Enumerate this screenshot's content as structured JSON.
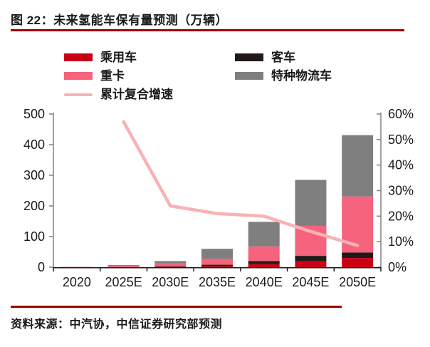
{
  "figure": {
    "title": "图 22：未来氢能车保有量预测（万辆）",
    "source": "资料来源：中汽协，中信证券研究部预测"
  },
  "colors": {
    "accent_rule": "#9c0008",
    "passenger_car": "#cb0017",
    "bus": "#211a18",
    "heavy_truck": "#f5637c",
    "special_logistics": "#7f7f7f",
    "cagr_line": "#f8b2b4",
    "axis_gray": "#808080",
    "axis_dark": "#1a1a1a",
    "text": "#1a1a1a"
  },
  "legend": {
    "columns": [
      {
        "items": [
          {
            "id": "passenger-cars",
            "label": "乘用车",
            "swatch": "bar",
            "color": "#cb0017"
          },
          {
            "id": "heavy-trucks",
            "label": "重卡",
            "swatch": "bar",
            "color": "#f5637c"
          },
          {
            "id": "cagr-line",
            "label": "累计复合增速",
            "swatch": "line",
            "color": "#f8b2b4"
          }
        ]
      },
      {
        "items": [
          {
            "id": "buses",
            "label": "客车",
            "swatch": "bar",
            "color": "#211a18"
          },
          {
            "id": "special-logistics",
            "label": "特种物流车",
            "swatch": "bar",
            "color": "#7f7f7f"
          }
        ]
      }
    ]
  },
  "chart_data": {
    "type": "bar",
    "subtype": "stacked-bar-with-line",
    "title": "未来氢能车保有量预测（万辆）",
    "categories": [
      "2020",
      "2025E",
      "2030E",
      "2035E",
      "2040E",
      "2045E",
      "2050E"
    ],
    "bar_series": [
      {
        "name": "乘用车",
        "color": "#cb0017",
        "values": [
          0,
          0,
          1,
          3,
          10,
          20,
          30
        ]
      },
      {
        "name": "客车",
        "color": "#211a18",
        "values": [
          0,
          0,
          2,
          5,
          10,
          17,
          18
        ]
      },
      {
        "name": "重卡",
        "color": "#f5637c",
        "values": [
          1,
          4,
          9,
          20,
          48,
          98,
          183
        ]
      },
      {
        "name": "特种物流车",
        "color": "#7f7f7f",
        "values": [
          0,
          3,
          8,
          32,
          80,
          150,
          200
        ]
      }
    ],
    "stack_totals": [
      1,
      7,
      20,
      60,
      148,
      285,
      431
    ],
    "line_series": {
      "name": "累计复合增速",
      "color": "#f8b2b4",
      "axis": "right",
      "values_pct": [
        null,
        57,
        24,
        21,
        20,
        14,
        8.5
      ]
    },
    "left_axis": {
      "min": 0,
      "max": 500,
      "step": 100,
      "ticks": [
        "0",
        "100",
        "200",
        "300",
        "400",
        "500"
      ]
    },
    "right_axis": {
      "min": 0,
      "max": 60,
      "step": 10,
      "ticks": [
        "0%",
        "10%",
        "20%",
        "30%",
        "40%",
        "50%",
        "60%"
      ]
    },
    "grid": false,
    "legend_position": "top"
  }
}
